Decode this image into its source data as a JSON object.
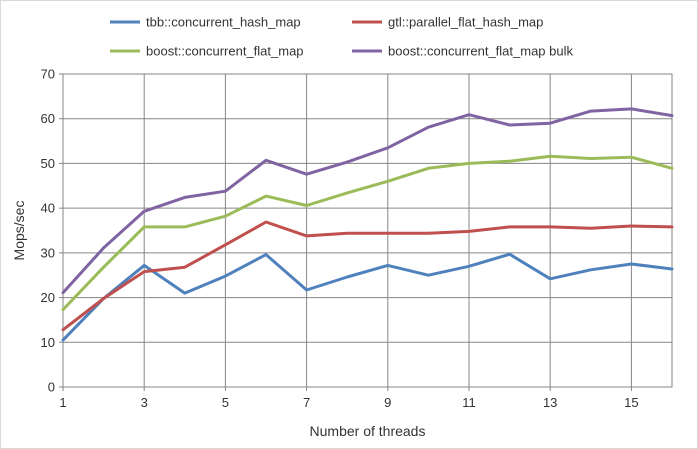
{
  "chart_data": {
    "type": "line",
    "title": "",
    "xlabel": "Number of threads",
    "ylabel": "Mops/sec",
    "xlim": [
      1,
      16
    ],
    "ylim": [
      0,
      70
    ],
    "y_ticks": [
      0,
      10,
      20,
      30,
      40,
      50,
      60,
      70
    ],
    "x_ticks": [
      1,
      3,
      5,
      7,
      9,
      11,
      13,
      15
    ],
    "x_tick_labels": [
      "1",
      "3",
      "5",
      "7",
      "9",
      "11",
      "13",
      "15"
    ],
    "grid": "vertical and horizontal major gridlines",
    "legend_position": "top",
    "x": [
      1,
      2,
      3,
      4,
      5,
      6,
      7,
      8,
      9,
      10,
      11,
      12,
      13,
      14,
      15,
      16
    ],
    "series": [
      {
        "name": "tbb::concurrent_hash_map",
        "color": "#4F81BD",
        "values": [
          10.5,
          19.8,
          27.2,
          21.0,
          24.8,
          29.6,
          21.7,
          24.6,
          27.2,
          25.0,
          27.0,
          29.7,
          24.2,
          26.2,
          27.5,
          26.4
        ]
      },
      {
        "name": "gtl::parallel_flat_hash_map",
        "color": "#C0504D",
        "values": [
          12.8,
          19.8,
          25.8,
          26.8,
          31.8,
          36.9,
          33.8,
          34.4,
          34.4,
          34.4,
          34.8,
          35.8,
          35.8,
          35.5,
          36.0,
          35.8
        ]
      },
      {
        "name": "boost::concurrent_flat_map",
        "color": "#9BBB59",
        "values": [
          17.3,
          26.8,
          35.8,
          35.8,
          38.2,
          42.7,
          40.6,
          43.4,
          46.0,
          48.9,
          50.0,
          50.5,
          51.6,
          51.1,
          51.4,
          48.9
        ]
      },
      {
        "name": "boost::concurrent_flat_map bulk",
        "color": "#8064A2",
        "values": [
          21.1,
          31.1,
          39.3,
          42.4,
          43.8,
          50.7,
          47.6,
          50.3,
          53.5,
          58.1,
          60.9,
          58.6,
          59.0,
          61.7,
          62.2,
          60.7
        ]
      }
    ]
  }
}
